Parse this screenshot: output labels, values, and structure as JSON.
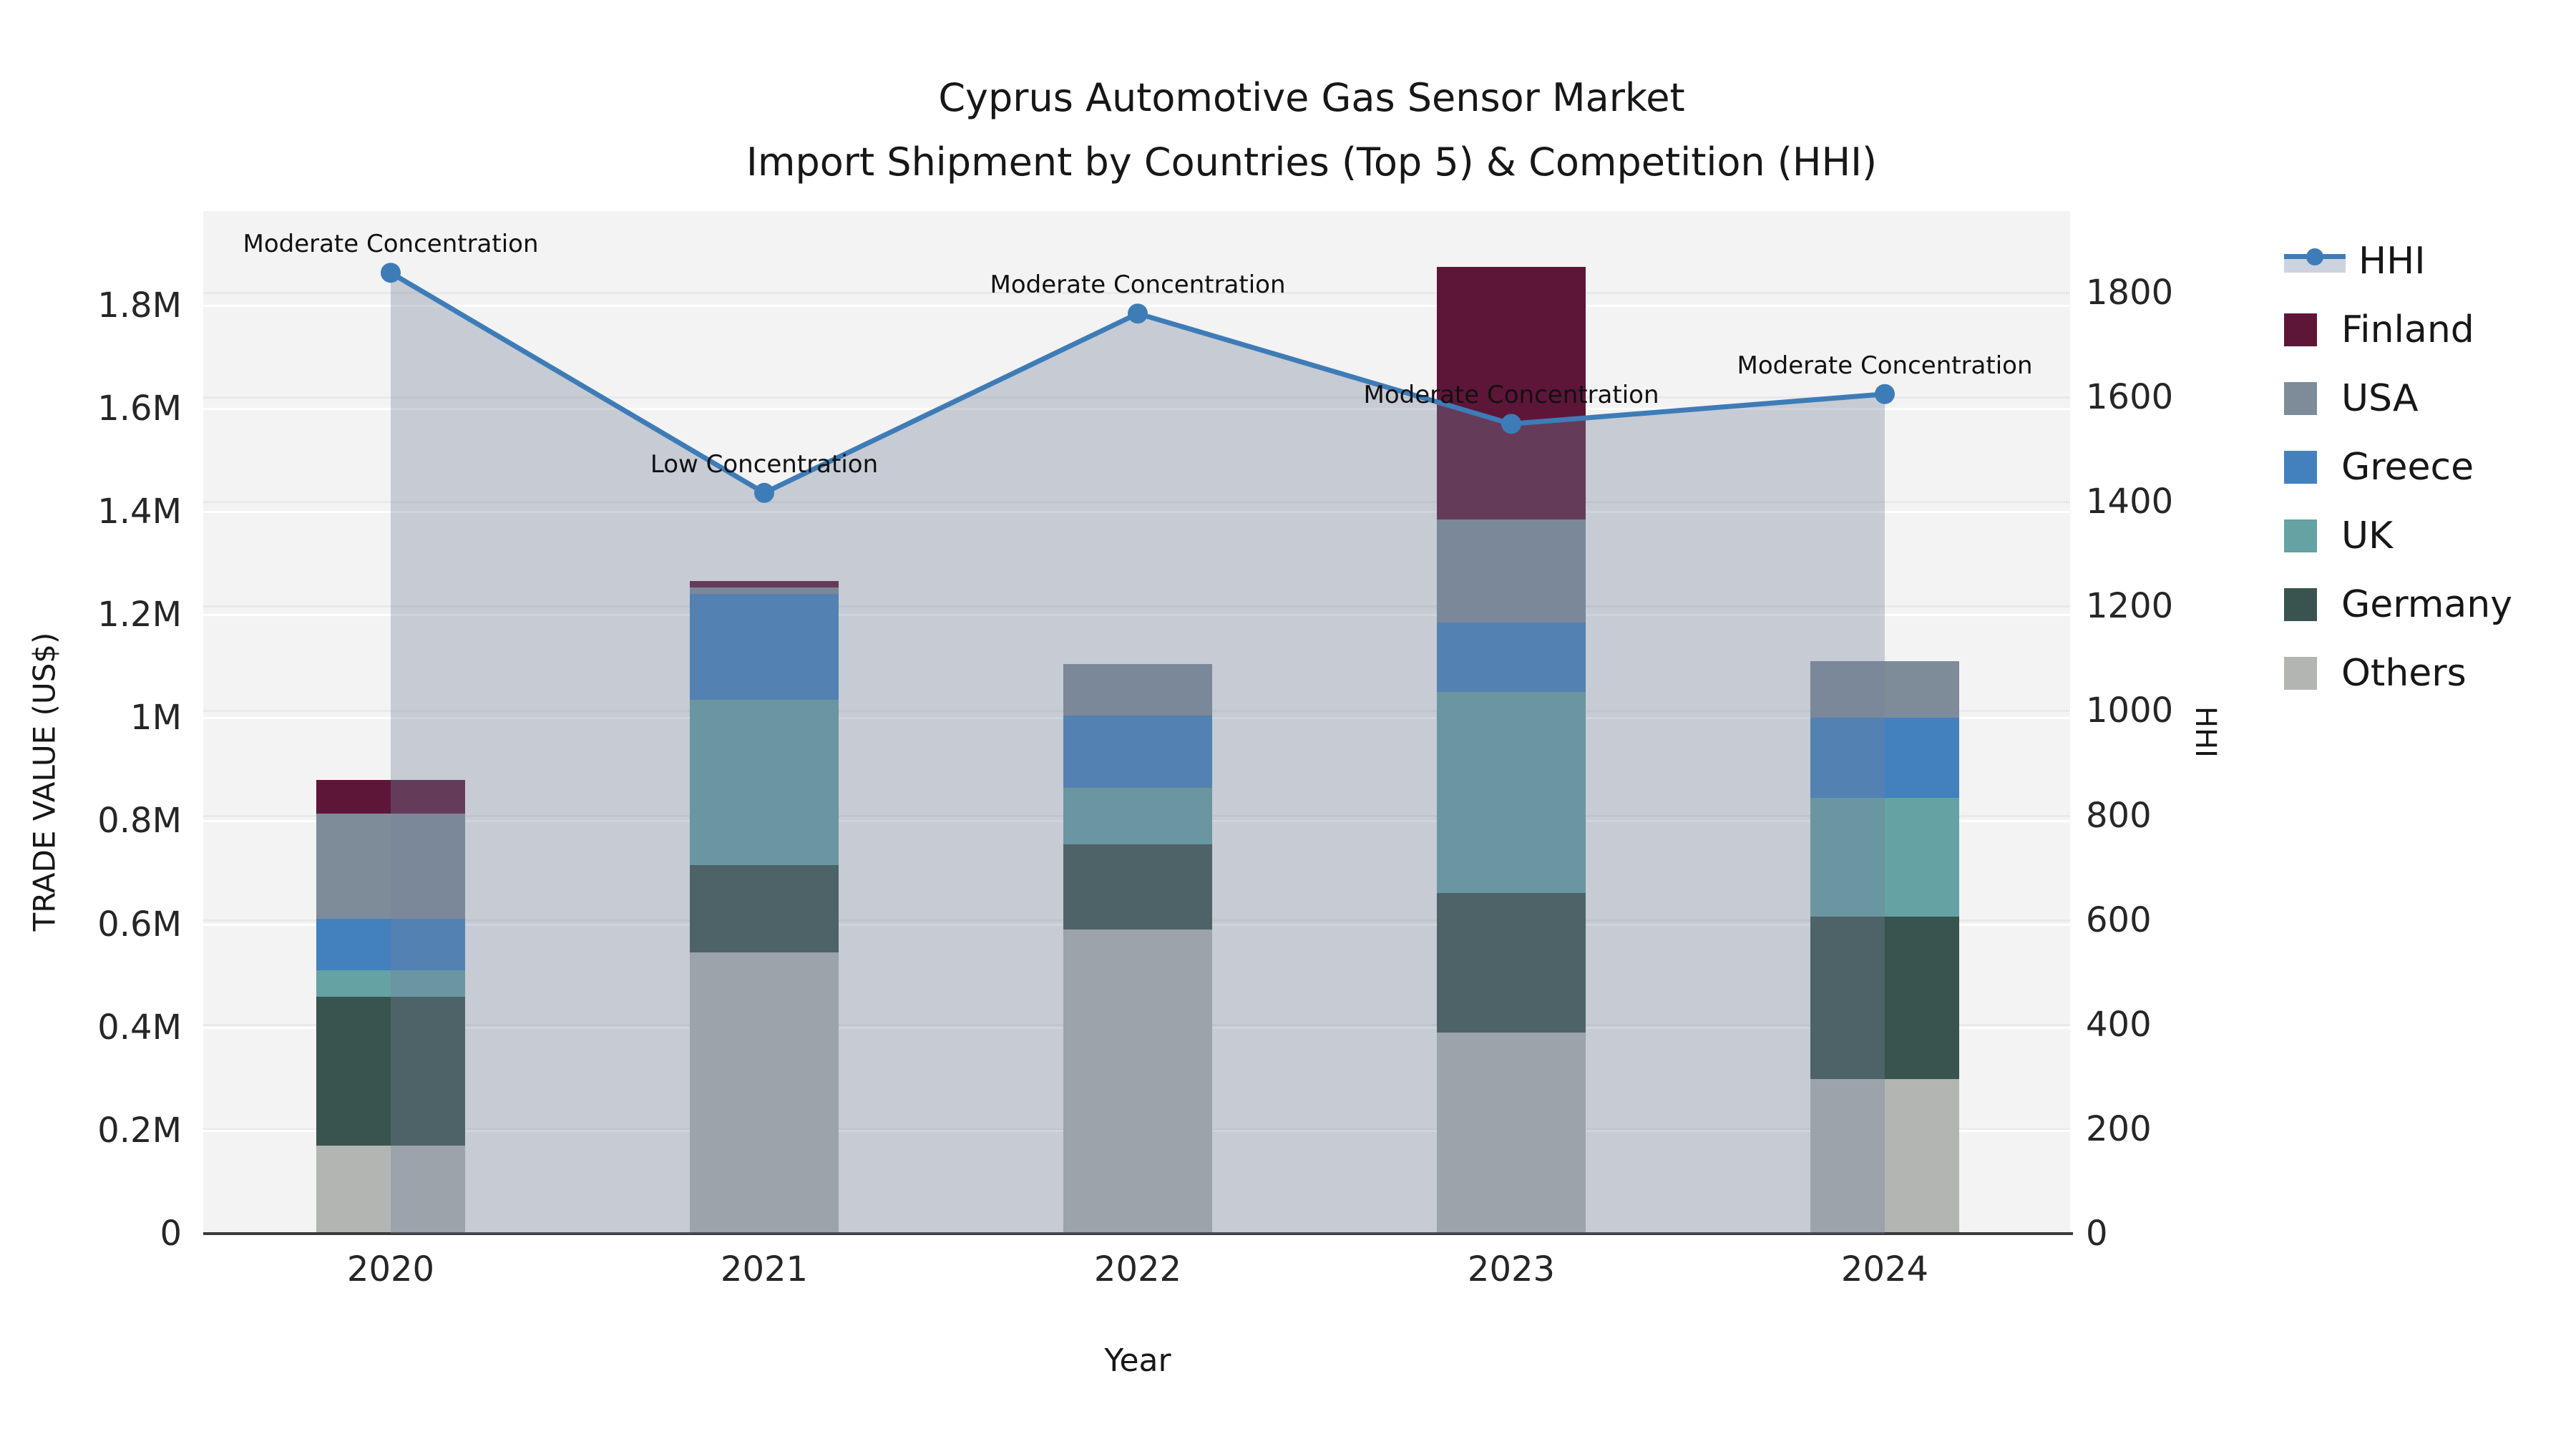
{
  "title": {
    "line1": "Cyprus Automotive Gas Sensor Market",
    "line2": "Import Shipment by Countries (Top 5) & Competition (HHI)"
  },
  "axes": {
    "y_left": {
      "label": "TRADE VALUE (US$)",
      "ticks": [
        "0",
        "0.2M",
        "0.4M",
        "0.6M",
        "0.8M",
        "1M",
        "1.2M",
        "1.4M",
        "1.6M",
        "1.8M"
      ],
      "tick_values_M": [
        0,
        0.2,
        0.4,
        0.6,
        0.8,
        1.0,
        1.2,
        1.4,
        1.6,
        1.8
      ],
      "max_M": 1.983
    },
    "y_right": {
      "label": "HHI",
      "ticks": [
        "0",
        "200",
        "400",
        "600",
        "800",
        "1000",
        "1200",
        "1400",
        "1600",
        "1800"
      ],
      "tick_values": [
        0,
        200,
        400,
        600,
        800,
        1000,
        1200,
        1400,
        1600,
        1800
      ],
      "max": 1956
    },
    "x": {
      "label": "Year",
      "categories": [
        "2020",
        "2021",
        "2022",
        "2023",
        "2024"
      ]
    }
  },
  "legend": {
    "items": [
      "HHI",
      "Finland",
      "USA",
      "Greece",
      "UK",
      "Germany",
      "Others"
    ]
  },
  "colors": {
    "hhi_line": "#3E7CB7",
    "hhi_area": "rgba(115,130,155,0.35)",
    "hhi_legend_band": "#ccd3de",
    "plot_bg": "#f3f3f3",
    "Finland": "#5E1638",
    "USA": "#7E8C9A",
    "Greece": "#4281BE",
    "UK": "#64A2A4",
    "Germany": "#39544E",
    "Others": "#B3B5B2"
  },
  "chart_data": {
    "type": "bar",
    "subtype": "stacked bars with overlaid line (dual axis)",
    "title": "Cyprus Automotive Gas Sensor Market — Import Shipment by Countries (Top 5) & Competition (HHI)",
    "xlabel": "Year",
    "ylabel_left": "TRADE VALUE (US$)",
    "ylabel_right": "HHI",
    "unit": "million US$",
    "categories": [
      "2020",
      "2021",
      "2022",
      "2023",
      "2024"
    ],
    "stack_order_bottom_to_top": [
      "Others",
      "Germany",
      "UK",
      "Greece",
      "USA",
      "Finland"
    ],
    "series": [
      {
        "name": "Finland",
        "color": "#5E1638",
        "values": [
          0.065,
          0.013,
          0,
          0.49,
          0
        ]
      },
      {
        "name": "USA",
        "color": "#7E8C9A",
        "values": [
          0.205,
          0.013,
          0.1,
          0.2,
          0.11
        ]
      },
      {
        "name": "Greece",
        "color": "#4281BE",
        "values": [
          0.1,
          0.205,
          0.14,
          0.135,
          0.155
        ]
      },
      {
        "name": "UK",
        "color": "#64A2A4",
        "values": [
          0.05,
          0.32,
          0.11,
          0.39,
          0.23
        ]
      },
      {
        "name": "Germany",
        "color": "#39544E",
        "values": [
          0.29,
          0.17,
          0.165,
          0.27,
          0.315
        ]
      },
      {
        "name": "Others",
        "color": "#B3B5B2",
        "values": [
          0.17,
          0.545,
          0.59,
          0.39,
          0.3
        ]
      }
    ],
    "bar_totals_M": [
      0.88,
      1.27,
      1.11,
      1.88,
      1.11
    ],
    "hhi": {
      "name": "HHI",
      "axis": "right",
      "values": [
        1838,
        1417,
        1760,
        1549,
        1606
      ],
      "annotations": [
        "Moderate Concentration",
        "Low Concentration",
        "Moderate Concentration",
        "Moderate Concentration",
        "Moderate Concentration"
      ]
    },
    "ylim_left_M": [
      0,
      1.983
    ],
    "ylim_right": [
      0,
      1956
    ],
    "grid": "horizontal gridlines for both axes",
    "legend_position": "right"
  }
}
